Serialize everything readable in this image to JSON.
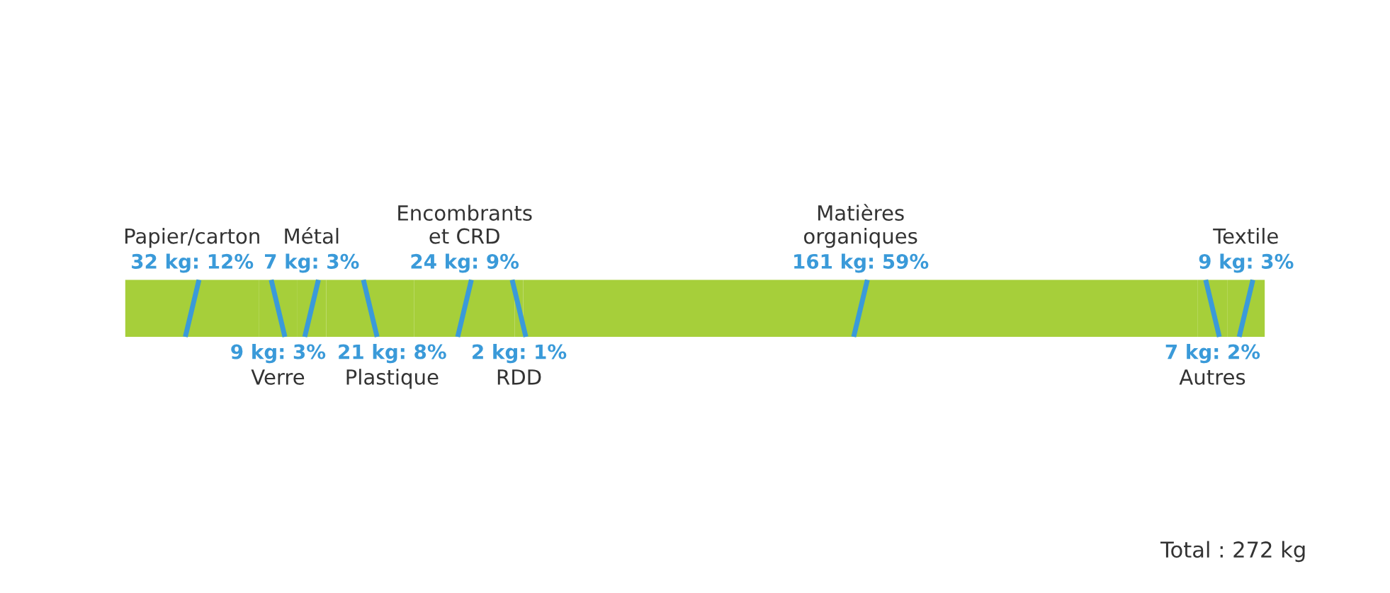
{
  "chart_data": {
    "type": "bar",
    "orientation": "horizontal",
    "stacked": true,
    "categories": [
      null
    ],
    "tick_labels": false,
    "legend": false,
    "series": [
      {
        "name": "Papier/carton",
        "color": "#a6cf3a",
        "values": [
          32
        ],
        "value_labels": [
          "32 kg: 12%"
        ]
      },
      {
        "name": "Verre",
        "color": "#a6cf3a",
        "values": [
          9
        ],
        "value_labels": [
          "9 kg: 3%"
        ]
      },
      {
        "name": "Métal",
        "color": "#a6cf3a",
        "values": [
          7
        ],
        "value_labels": [
          "7 kg: 3%"
        ]
      },
      {
        "name": "Plastique",
        "color": "#a6cf3a",
        "values": [
          21
        ],
        "value_labels": [
          "21 kg: 8%"
        ]
      },
      {
        "name": "Encombrants\net CRD",
        "color": "#a6cf3a",
        "values": [
          24
        ],
        "value_labels": [
          "24 kg: 9%"
        ]
      },
      {
        "name": "RDD",
        "color": "#a6cf3a",
        "values": [
          2
        ],
        "value_labels": [
          "2 kg: 1%"
        ]
      },
      {
        "name": "Matières\norganiques",
        "color": "#a6cf3a",
        "values": [
          161
        ],
        "value_labels": [
          "161 kg: 59%"
        ]
      },
      {
        "name": "Autres",
        "color": "#a6cf3a",
        "values": [
          7
        ],
        "value_labels": [
          "7 kg: 2%"
        ]
      },
      {
        "name": "Textile",
        "color": "#a6cf3a",
        "values": [
          9
        ],
        "value_labels": [
          "9 kg: 3%"
        ]
      }
    ],
    "annotations": [
      "Total : 272 kg"
    ]
  }
}
